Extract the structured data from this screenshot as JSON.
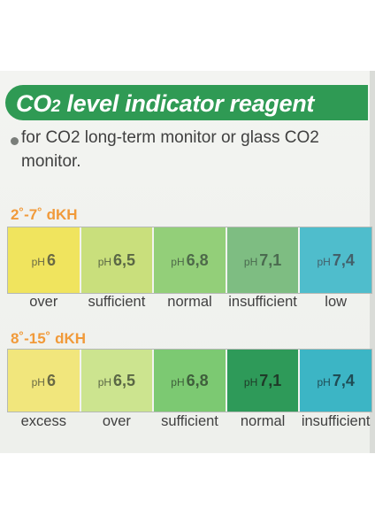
{
  "title": {
    "prefix": "CO",
    "sub": "2",
    "rest": " level indicator reagent"
  },
  "description": {
    "line1": "for CO2 long-term monitor or glass CO2",
    "line2": "monitor."
  },
  "tables": [
    {
      "range": "2˚-7˚ dKH",
      "swatches": [
        {
          "prefix": "pH",
          "value": "6",
          "color": "#f0e45e",
          "text_color": "#6a6a45"
        },
        {
          "prefix": "pH",
          "value": "6,5",
          "color": "#c9df7c",
          "text_color": "#5a6745"
        },
        {
          "prefix": "pH",
          "value": "6,8",
          "color": "#93cf79",
          "text_color": "#4e6a4a"
        },
        {
          "prefix": "pH",
          "value": "7,1",
          "color": "#7ebd82",
          "text_color": "#4a6a4f"
        },
        {
          "prefix": "pH",
          "value": "7,4",
          "color": "#4fbdcc",
          "text_color": "#43606a"
        }
      ],
      "captions": [
        "over",
        "sufficient",
        "normal",
        "insufficient",
        "low"
      ]
    },
    {
      "range": "8˚-15˚ dKH",
      "swatches": [
        {
          "prefix": "pH",
          "value": "6",
          "color": "#f1e67c",
          "text_color": "#6a6a45"
        },
        {
          "prefix": "pH",
          "value": "6,5",
          "color": "#cce48f",
          "text_color": "#5a6745"
        },
        {
          "prefix": "pH",
          "value": "6,8",
          "color": "#7cc972",
          "text_color": "#3f5f3c"
        },
        {
          "prefix": "pH",
          "value": "7,1",
          "color": "#2e9a59",
          "text_color": "#1f3a28"
        },
        {
          "prefix": "pH",
          "value": "7,4",
          "color": "#3cb5c5",
          "text_color": "#1f4c55"
        }
      ],
      "captions": [
        "excess",
        "over",
        "sufficient",
        "normal",
        "insufficient"
      ]
    }
  ],
  "colors": {
    "banner": "#2f9a54",
    "range_title": "#f19a3a"
  }
}
